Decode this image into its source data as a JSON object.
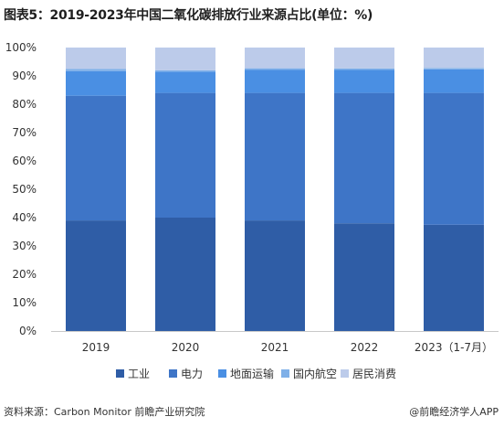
{
  "title": "图表5：2019-2023年中国二氧化碳排放行业来源占比(单位：%)",
  "source": "资料来源：Carbon Monitor 前瞻产业研究院",
  "brand": "@前瞻经济学人APP",
  "colors": {
    "工业": "#2f5da6",
    "电力": "#3e75c7",
    "地面运输": "#4a8fe3",
    "国内航空": "#7fb0e8",
    "居民消费": "#bccbea"
  },
  "chart_data": {
    "type": "bar",
    "stacked": true,
    "categories": [
      "2019",
      "2020",
      "2021",
      "2022",
      "2023（1-7月）"
    ],
    "series": [
      {
        "name": "工业",
        "values": [
          39,
          40,
          39,
          38,
          37.5
        ]
      },
      {
        "name": "电力",
        "values": [
          44,
          44,
          45,
          46,
          46.5
        ]
      },
      {
        "name": "地面运输",
        "values": [
          8.7,
          7.5,
          8.1,
          8.2,
          8.3
        ]
      },
      {
        "name": "国内航空",
        "values": [
          0.8,
          0.5,
          0.6,
          0.4,
          0.5
        ]
      },
      {
        "name": "居民消费",
        "values": [
          7.5,
          8,
          7.3,
          7.4,
          7.2
        ]
      }
    ],
    "y_ticks": [
      "0%",
      "10%",
      "20%",
      "30%",
      "40%",
      "50%",
      "60%",
      "70%",
      "80%",
      "90%",
      "100%"
    ],
    "ylim": [
      0,
      100
    ],
    "grid": false,
    "legend_position": "bottom"
  }
}
